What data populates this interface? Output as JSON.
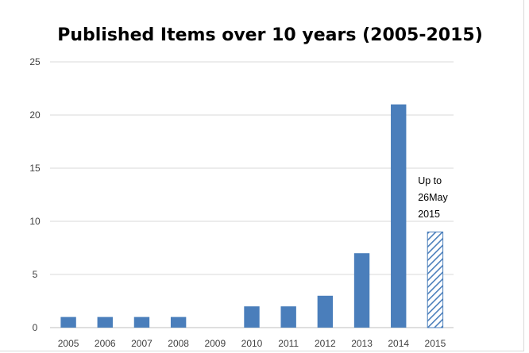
{
  "chart_data": {
    "type": "bar",
    "title": "Published Items over 10 years (2005-2015)",
    "xlabel": "",
    "ylabel": "",
    "categories": [
      "2005",
      "2006",
      "2007",
      "2008",
      "2009",
      "2010",
      "2011",
      "2012",
      "2013",
      "2014",
      "2015"
    ],
    "values": [
      1,
      1,
      1,
      1,
      0,
      2,
      2,
      3,
      7,
      21,
      9
    ],
    "ylim": [
      0,
      25
    ],
    "yticks": [
      "0",
      "5",
      "10",
      "15",
      "20",
      "25"
    ],
    "grid": true,
    "bar_color": "#4a7ebb",
    "hatched_category": "2015",
    "annotation": {
      "category": "2015",
      "lines": [
        "Up to",
        "26May",
        "2015"
      ]
    }
  }
}
